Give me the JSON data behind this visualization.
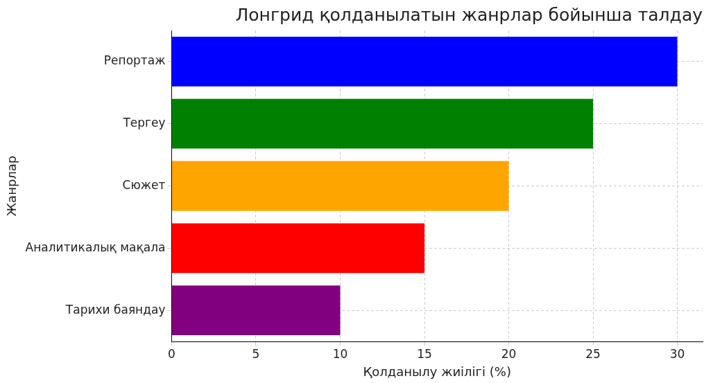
{
  "chart_data": {
    "type": "bar",
    "orientation": "horizontal",
    "title": "Лонгрид қолданылатын жанрлар бойынша талдау",
    "xlabel": "Қолданылу жиілігі (%)",
    "ylabel": "Жанрлар",
    "categories": [
      "Репортаж",
      "Тергеу",
      "Сюжет",
      "Аналитикалық мақала",
      "Тарихи баяндау"
    ],
    "values": [
      30,
      25,
      20,
      15,
      10
    ],
    "colors": [
      "#0000ff",
      "#008000",
      "#ffa500",
      "#ff0000",
      "#800080"
    ],
    "xlim": [
      0,
      31.5
    ],
    "xticks": [
      0,
      5,
      10,
      15,
      20,
      25,
      30
    ],
    "grid": true
  }
}
